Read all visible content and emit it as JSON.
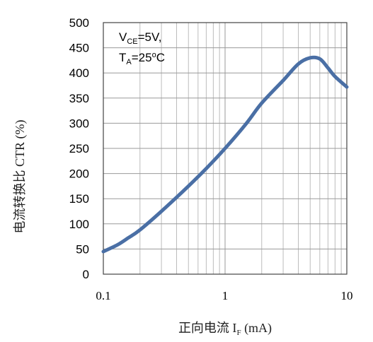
{
  "chart_data": {
    "type": "line",
    "xlabel_prefix": "正向电流 I",
    "xlabel_sub": "F",
    "xlabel_suffix": " (mA)",
    "ylabel": "电流转换比 CTR (%)",
    "x_scale": "log",
    "xlim": [
      0.1,
      10
    ],
    "ylim": [
      0,
      500
    ],
    "x_ticks": [
      "0.1",
      "1",
      "10"
    ],
    "y_ticks": [
      "0",
      "50",
      "100",
      "150",
      "200",
      "250",
      "300",
      "350",
      "400",
      "450",
      "500"
    ],
    "grid": true,
    "annotation": {
      "line1_main": "V",
      "line1_sub": "CE",
      "line1_rest": "=5V,",
      "line2_main": "T",
      "line2_sub": "A",
      "line2_rest": "=25",
      "line2_deg": "o",
      "line2_unit": "C"
    },
    "series": [
      {
        "color": "#4a6fa5",
        "x": [
          0.1,
          0.13,
          0.16,
          0.2,
          0.3,
          0.5,
          0.7,
          1,
          1.5,
          2,
          3,
          4,
          5,
          6,
          7,
          8,
          10
        ],
        "y": [
          45,
          58,
          72,
          88,
          125,
          175,
          210,
          250,
          300,
          340,
          385,
          418,
          430,
          428,
          410,
          393,
          372
        ]
      }
    ]
  }
}
